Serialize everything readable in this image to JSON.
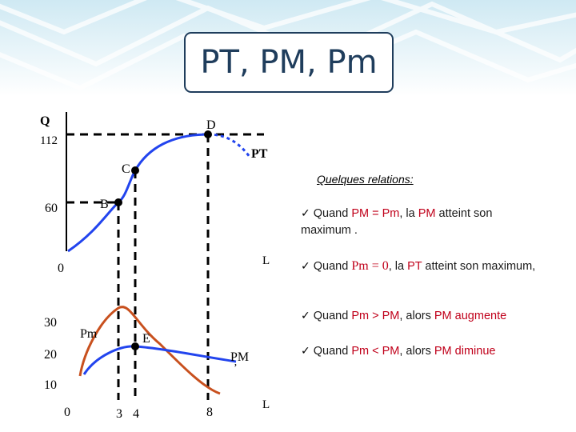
{
  "title": "PT, PM, Pm",
  "colors": {
    "pt_curve": "#2244ee",
    "pm_curve": "#2244ee",
    "pm_marginal_curve": "#c8501e",
    "dashed": "#000000",
    "highlight": "#c0001a",
    "title": "#1f3d5c"
  },
  "top_graph": {
    "y_labels": {
      "q": "Q",
      "y112": "112",
      "y60": "60",
      "zero": "0"
    },
    "x_label": "L",
    "curve_label": "PT",
    "points": {
      "b": "B",
      "c": "C",
      "d": "D"
    }
  },
  "bottom_graph": {
    "y_labels": {
      "y30": "30",
      "y20": "20",
      "y10": "10",
      "zero": "0"
    },
    "x_labels": {
      "x3": "3",
      "x4": "4",
      "x8": "8"
    },
    "x_label": "L",
    "curve_labels": {
      "pm_marginal": "Pm",
      "pm_average": "PM",
      "pm_mark": "’"
    },
    "point_e": "E"
  },
  "relations": {
    "title": "Quelques relations:",
    "check": "✓",
    "r1": {
      "a": "Quand ",
      "b": "PM = Pm",
      "c": ", la ",
      "d": "PM",
      "e": " atteint son maximum ."
    },
    "r2": {
      "a": "Quand ",
      "b": "Pm = 0",
      "c": ", la ",
      "d": "PT",
      "e": " atteint son maximum,"
    },
    "r3": {
      "a": "Quand ",
      "b": "Pm > PM",
      "c": ", alors ",
      "d": "PM augmente"
    },
    "r4": {
      "a": "Quand  ",
      "b": "Pm < PM",
      "c": ", alors ",
      "d": "PM diminue"
    }
  }
}
